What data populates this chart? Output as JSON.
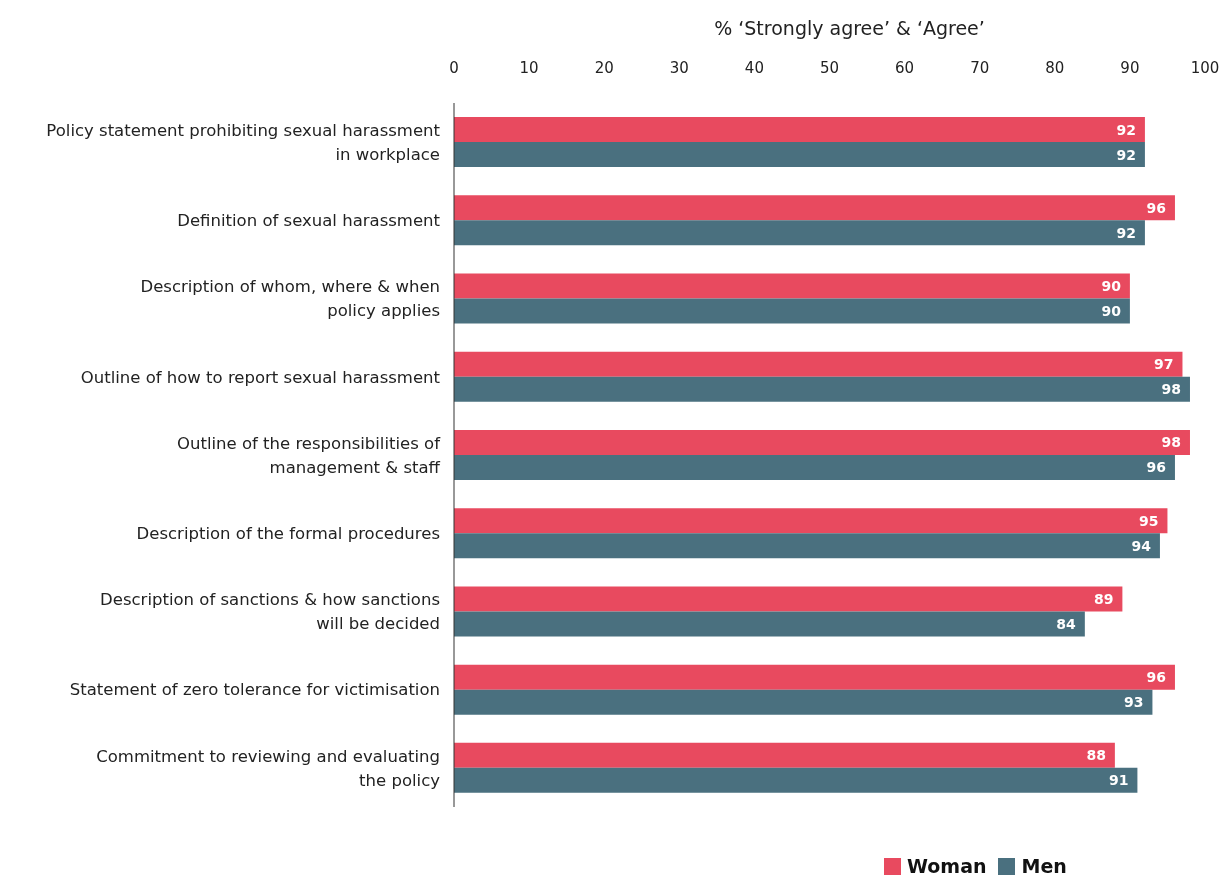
{
  "chart_data": {
    "type": "bar",
    "orientation": "horizontal",
    "xlabel": "% ‘Strongly agree’ & ‘Agree’",
    "categories": [
      "Policy statement prohibiting sexual harassment\nin workplace",
      "Definition of sexual harassment",
      "Description of whom, where & when\npolicy applies",
      "Outline of how to report sexual harassment",
      "Outline of the responsibilities of\nmanagement & staff",
      "Description of the formal procedures",
      "Description of sanctions & how sanctions\nwill be decided",
      "Statement of zero tolerance for victimisation",
      "Commitment to reviewing and evaluating\nthe policy"
    ],
    "series": [
      {
        "name": "Woman",
        "color": "#e84a5f",
        "values": [
          92,
          96,
          90,
          97,
          98,
          95,
          89,
          96,
          88
        ]
      },
      {
        "name": "Men",
        "color": "#4a707f",
        "values": [
          92,
          92,
          90,
          98,
          96,
          94,
          84,
          93,
          91
        ]
      }
    ],
    "xlim": [
      0,
      100
    ],
    "xticks": [
      0,
      10,
      20,
      30,
      40,
      50,
      60,
      70,
      80,
      90,
      100
    ],
    "data_labels": true,
    "legend": "bottom"
  }
}
